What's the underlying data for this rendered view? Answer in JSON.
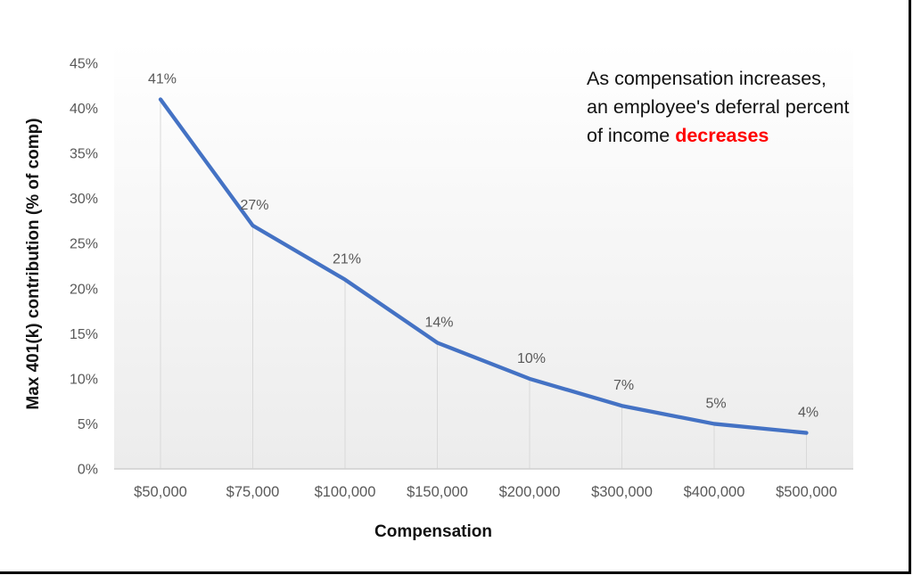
{
  "chart_data": {
    "type": "line",
    "title": "",
    "categories": [
      "$50,000",
      "$75,000",
      "$100,000",
      "$150,000",
      "$200,000",
      "$300,000",
      "$400,000",
      "$500,000"
    ],
    "series": [
      {
        "name": "Max 401(k) contribution (% of comp)",
        "values": [
          41,
          27,
          21,
          14,
          10,
          7,
          5,
          4
        ]
      }
    ],
    "data_labels": [
      "41%",
      "27%",
      "21%",
      "14%",
      "10%",
      "7%",
      "5%",
      "4%"
    ],
    "xlabel": "Compensation",
    "ylabel": "Max 401(k) contribution (% of comp)",
    "ylim": [
      0,
      45
    ],
    "ytick_labels": [
      "0%",
      "5%",
      "10%",
      "15%",
      "20%",
      "25%",
      "30%",
      "35%",
      "40%",
      "45%"
    ],
    "grid": "vertical drop lines from each data point to x-axis",
    "legend_position": "none",
    "line_color": "#4472c4",
    "tick_label_color": "#595959",
    "data_label_color": "#595959",
    "dropline_color": "#d9d9d9",
    "axis_line_color": "#cfcfcf",
    "plot_fill_top": "#ffffff",
    "plot_fill_bottom": "#ececec"
  },
  "annotation": {
    "line1": "As compensation increases,",
    "line2": "an employee's deferral percent",
    "line3_prefix": "of income ",
    "line3_highlight": "decreases",
    "highlight_color": "#ff0000"
  }
}
